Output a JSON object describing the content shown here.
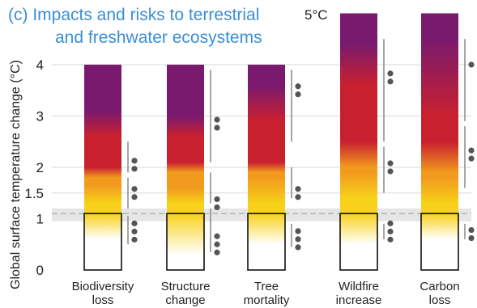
{
  "chart_data": {
    "type": "bar",
    "title_line1": "(c) Impacts and risks to terrestrial",
    "title_line2": "and freshwater ecosystems",
    "ylabel": "Global surface temperature change (°C)",
    "ylim": [
      0,
      4
    ],
    "y_ticks": [
      {
        "value": 0,
        "label": "0"
      },
      {
        "value": 1,
        "label": "1"
      },
      {
        "value": 1.5,
        "label": "1.5"
      },
      {
        "value": 2,
        "label": "2"
      },
      {
        "value": 3,
        "label": "3"
      },
      {
        "value": 4,
        "label": "4"
      }
    ],
    "top_label": "5°C",
    "reference_band": [
      0.95,
      1.2
    ],
    "reference_line": 1.1,
    "colors": {
      "white": "#ffffff",
      "yellow": "#f7d11a",
      "orange": "#f29a1e",
      "red": "#c9202f",
      "purple": "#7a1a6e",
      "dot": "#555555",
      "line": "#777777",
      "title": "#3a8fd6"
    },
    "categories_line1": [
      "Biodiversity",
      "Structure",
      "Tree",
      "Wildfire",
      "Carbon"
    ],
    "categories_line2": [
      "loss",
      "change",
      "mortality",
      "increase",
      "loss"
    ],
    "series": [
      {
        "top": 4,
        "transitions": [
          [
            0.6,
            1.1
          ],
          [
            1.3,
            1.65
          ],
          [
            1.8,
            2.0
          ],
          [
            2.6,
            3.1
          ]
        ],
        "confidence_dots": [
          [
            0.75,
            3
          ],
          [
            1.5,
            2
          ],
          [
            2.05,
            2
          ]
        ],
        "ranges": [
          [
            0.5,
            1.05
          ],
          [
            1.2,
            1.8
          ],
          [
            1.9,
            2.5
          ]
        ]
      },
      {
        "top": 4,
        "transitions": [
          [
            0.3,
            1.1
          ],
          [
            1.3,
            1.6
          ],
          [
            1.9,
            2.1
          ],
          [
            2.6,
            3.0
          ]
        ],
        "confidence_dots": [
          [
            0.5,
            3
          ],
          [
            1.3,
            2
          ],
          [
            2.85,
            2
          ]
        ],
        "ranges": [
          [
            0.35,
            1.2
          ],
          [
            1.3,
            1.9
          ],
          [
            2.1,
            3.9
          ]
        ]
      },
      {
        "top": 4,
        "transitions": [
          [
            0.5,
            1.1
          ],
          [
            1.3,
            1.8
          ],
          [
            1.9,
            2.1
          ],
          [
            2.9,
            3.6
          ]
        ],
        "confidence_dots": [
          [
            0.6,
            3
          ],
          [
            1.5,
            2
          ],
          [
            3.5,
            2
          ]
        ],
        "ranges": [
          [
            0.45,
            0.9
          ],
          [
            1.4,
            2.0
          ],
          [
            2.5,
            3.9
          ]
        ]
      },
      {
        "top": 5,
        "transitions": [
          [
            0.5,
            1.1
          ],
          [
            1.4,
            1.9
          ],
          [
            2.0,
            2.5
          ],
          [
            3.6,
            4.4
          ]
        ],
        "confidence_dots": [
          [
            0.75,
            3
          ],
          [
            2.0,
            2
          ],
          [
            3.75,
            2
          ]
        ],
        "ranges": [
          [
            0.6,
            0.9
          ],
          [
            1.5,
            2.4
          ],
          [
            2.5,
            4.5
          ]
        ]
      },
      {
        "top": 5,
        "transitions": [
          [
            0.6,
            1.1
          ],
          [
            1.3,
            1.8
          ],
          [
            1.9,
            2.5
          ],
          [
            3.0,
            4.5
          ]
        ],
        "confidence_dots": [
          [
            0.7,
            2
          ],
          [
            2.25,
            2
          ],
          [
            4.0,
            1
          ]
        ],
        "ranges": [
          [
            0.6,
            0.9
          ],
          [
            1.6,
            2.8
          ],
          [
            2.9,
            4.5
          ]
        ]
      }
    ]
  }
}
